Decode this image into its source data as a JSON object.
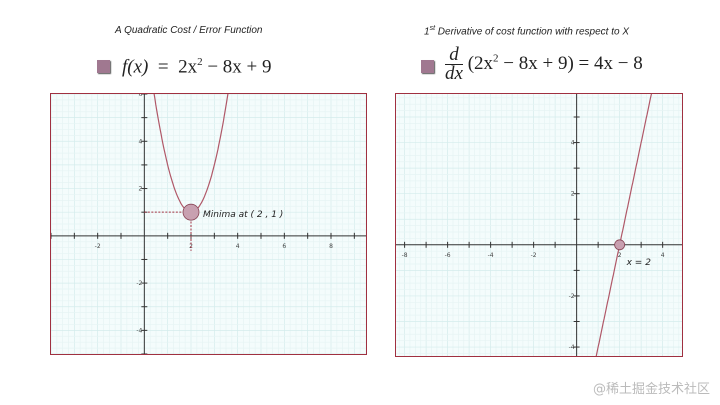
{
  "chart_data": [
    {
      "type": "line",
      "title": "A Quadratic Cost / Error Function",
      "equation": {
        "lhs": "f(x)",
        "rhs_a": "2x",
        "rhs_exp": "2",
        "rhs_b": " − 8x + 9"
      },
      "function": {
        "kind": "quadratic",
        "a": 2,
        "b": -8,
        "c": 9
      },
      "xlim": [
        -4,
        9.5
      ],
      "ylim": [
        -5,
        6
      ],
      "xticks": [
        -2,
        2,
        4,
        6,
        8
      ],
      "yticks": [
        -4,
        -2,
        2,
        4,
        6
      ],
      "annotation": {
        "text": "Minima at ( 2 , 1 )",
        "x": 2,
        "y": 1
      },
      "grid": true
    },
    {
      "type": "line",
      "title_sup": "st",
      "title_pre": "1",
      "title": " Derivative of cost function with respect to X",
      "equation": {
        "d": "d",
        "dx": "dx",
        "mid_a": "(2x",
        "mid_exp": "2",
        "mid_b": " − 8x + 9)  =  4x − 8"
      },
      "function": {
        "kind": "linear",
        "m": 4,
        "c": -8
      },
      "xlim": [
        -8.4,
        4.9
      ],
      "ylim": [
        -4.35,
        5.9
      ],
      "xticks": [
        -8,
        -6,
        -4,
        -2,
        2,
        4
      ],
      "yticks": [
        -4,
        -2,
        2,
        4
      ],
      "annotation": {
        "text": "x = 2",
        "x": 2,
        "y": 0
      },
      "grid": true
    }
  ],
  "colors": {
    "curve": "#b05868",
    "frame": "#a03040",
    "marker": "#c8a0b0"
  },
  "watermark": "@稀土掘金技术社区"
}
